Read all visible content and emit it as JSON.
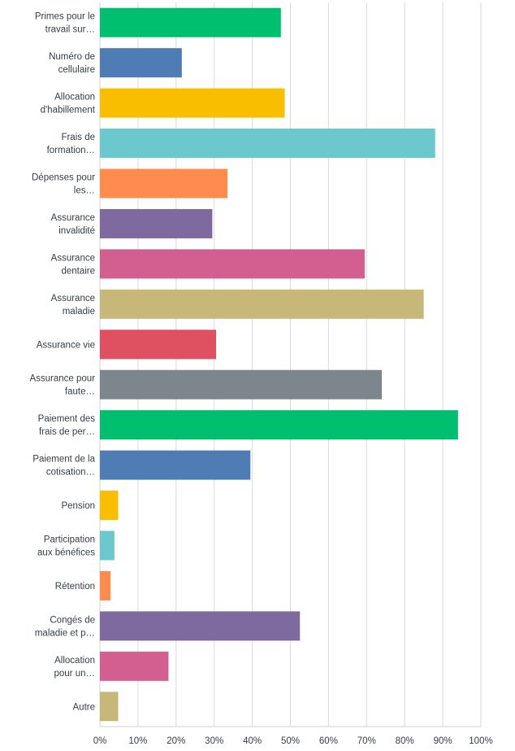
{
  "chart_data": {
    "type": "bar",
    "orientation": "horizontal",
    "categories": [
      [
        "Primes pour le",
        "travail sur…"
      ],
      [
        "Numéro de",
        "cellulaire"
      ],
      [
        "Allocation",
        "d'habillement"
      ],
      [
        "Frais de",
        "formation…"
      ],
      [
        "Dépenses pour",
        "les…"
      ],
      [
        "Assurance",
        "invalidité"
      ],
      [
        "Assurance",
        "dentaire"
      ],
      [
        "Assurance",
        "maladie"
      ],
      [
        "Assurance vie"
      ],
      [
        "Assurance pour",
        "faute…"
      ],
      [
        "Paiement des",
        "frais de per…"
      ],
      [
        "Paiement de la",
        "cotisation…"
      ],
      [
        "Pension"
      ],
      [
        "Participation",
        "aux bénéfices"
      ],
      [
        "Rétention"
      ],
      [
        "Congés de",
        "maladie et p…"
      ],
      [
        "Allocation",
        "pour un…"
      ],
      [
        "Autre"
      ]
    ],
    "values": [
      47.5,
      21.5,
      48.5,
      88,
      33.5,
      29.5,
      69.5,
      85,
      30.5,
      74,
      94,
      39.5,
      4.8,
      3.8,
      2.8,
      52.5,
      18,
      4.8
    ],
    "colors": [
      "#00bf6f",
      "#507cb6",
      "#f9be00",
      "#6bc8cd",
      "#ff8b4f",
      "#7f6aa0",
      "#d25f90",
      "#c7b879",
      "#df5160",
      "#7d868c",
      "#00bf6f",
      "#507cb6",
      "#f9be00",
      "#6bc8cd",
      "#ff8b4f",
      "#7f6aa0",
      "#d25f90",
      "#c7b879"
    ],
    "xlim": [
      0,
      100
    ],
    "xticks": [
      "0%",
      "10%",
      "20%",
      "30%",
      "40%",
      "50%",
      "60%",
      "70%",
      "80%",
      "90%",
      "100%"
    ],
    "grid": true,
    "gridColor": "#dadada",
    "axisColor": "#d0d0d0"
  }
}
